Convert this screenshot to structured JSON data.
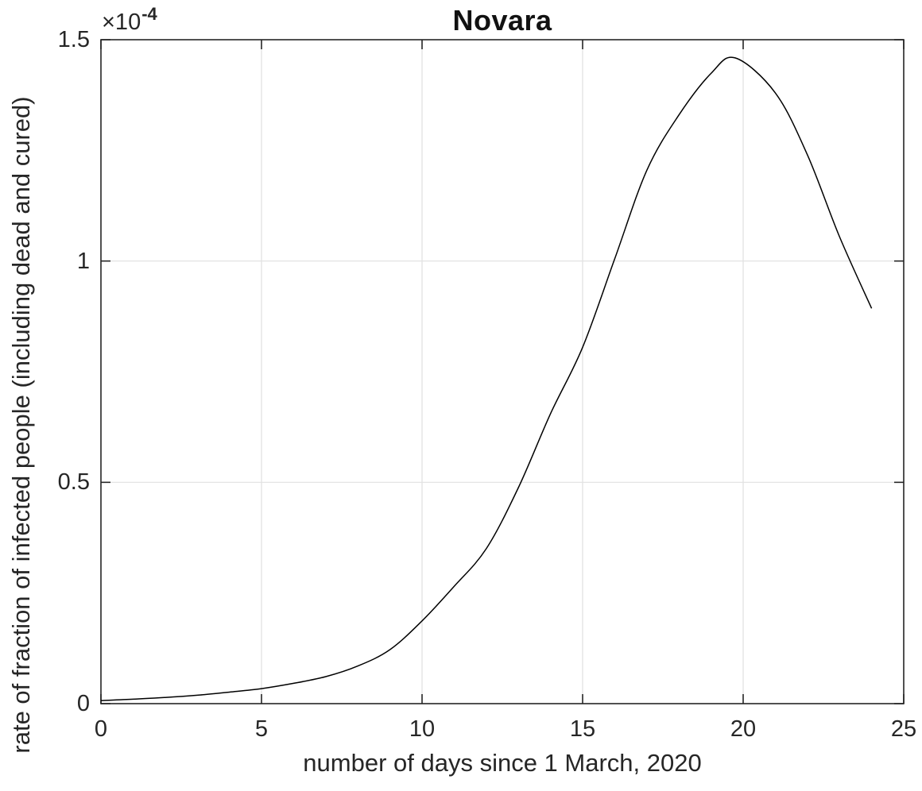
{
  "figure": {
    "title": "Novara",
    "xlabel": "number of days since 1 March, 2020",
    "ylabel": "rate of fraction of infected people (including dead and cured)",
    "y_axis_exponent_base": "×10",
    "y_axis_exponent_power": "-4"
  },
  "chart_data": {
    "type": "line",
    "title": "Novara",
    "xlabel": "number of days since 1 March, 2020",
    "ylabel": "rate of fraction of infected people (including dead and cured)",
    "y_scale_note": "y values are in units of 1e-4; axis corner label reads x10^-4",
    "xlim": [
      0,
      25
    ],
    "ylim_scaled": [
      0,
      1.5
    ],
    "xticks": [
      0,
      5,
      10,
      15,
      20,
      25
    ],
    "xtick_labels": [
      "0",
      "5",
      "10",
      "15",
      "20",
      "25"
    ],
    "yticks_scaled": [
      0,
      0.5,
      1,
      1.5
    ],
    "ytick_labels": [
      "0",
      "0.5",
      "1",
      "1.5"
    ],
    "grid": true,
    "legend_position": "none",
    "line_color": "#000000",
    "series": [
      {
        "name": "rate of fraction of infected people (including dead and cured)",
        "x": [
          0,
          1,
          2,
          3,
          4,
          5,
          6,
          7,
          8,
          9,
          10,
          11,
          12,
          13,
          14,
          15,
          16,
          17,
          18,
          19,
          19.75,
          21,
          22,
          23,
          24
        ],
        "y_scaled": [
          0.007,
          0.01,
          0.014,
          0.019,
          0.026,
          0.034,
          0.046,
          0.061,
          0.085,
          0.122,
          0.187,
          0.265,
          0.35,
          0.488,
          0.655,
          0.805,
          1.005,
          1.205,
          1.33,
          1.424,
          1.459,
          1.38,
          1.24,
          1.055,
          0.893
        ]
      }
    ],
    "peak_scaled": {
      "x": 19.75,
      "y": 1.46
    },
    "end_point_scaled": {
      "x": 24,
      "y": 0.89
    }
  },
  "style": {
    "axis_color": "#262626",
    "grid_color": "#e0e0e0",
    "tick_text_color": "#262626",
    "title_color": "#111111",
    "background": "#ffffff"
  }
}
